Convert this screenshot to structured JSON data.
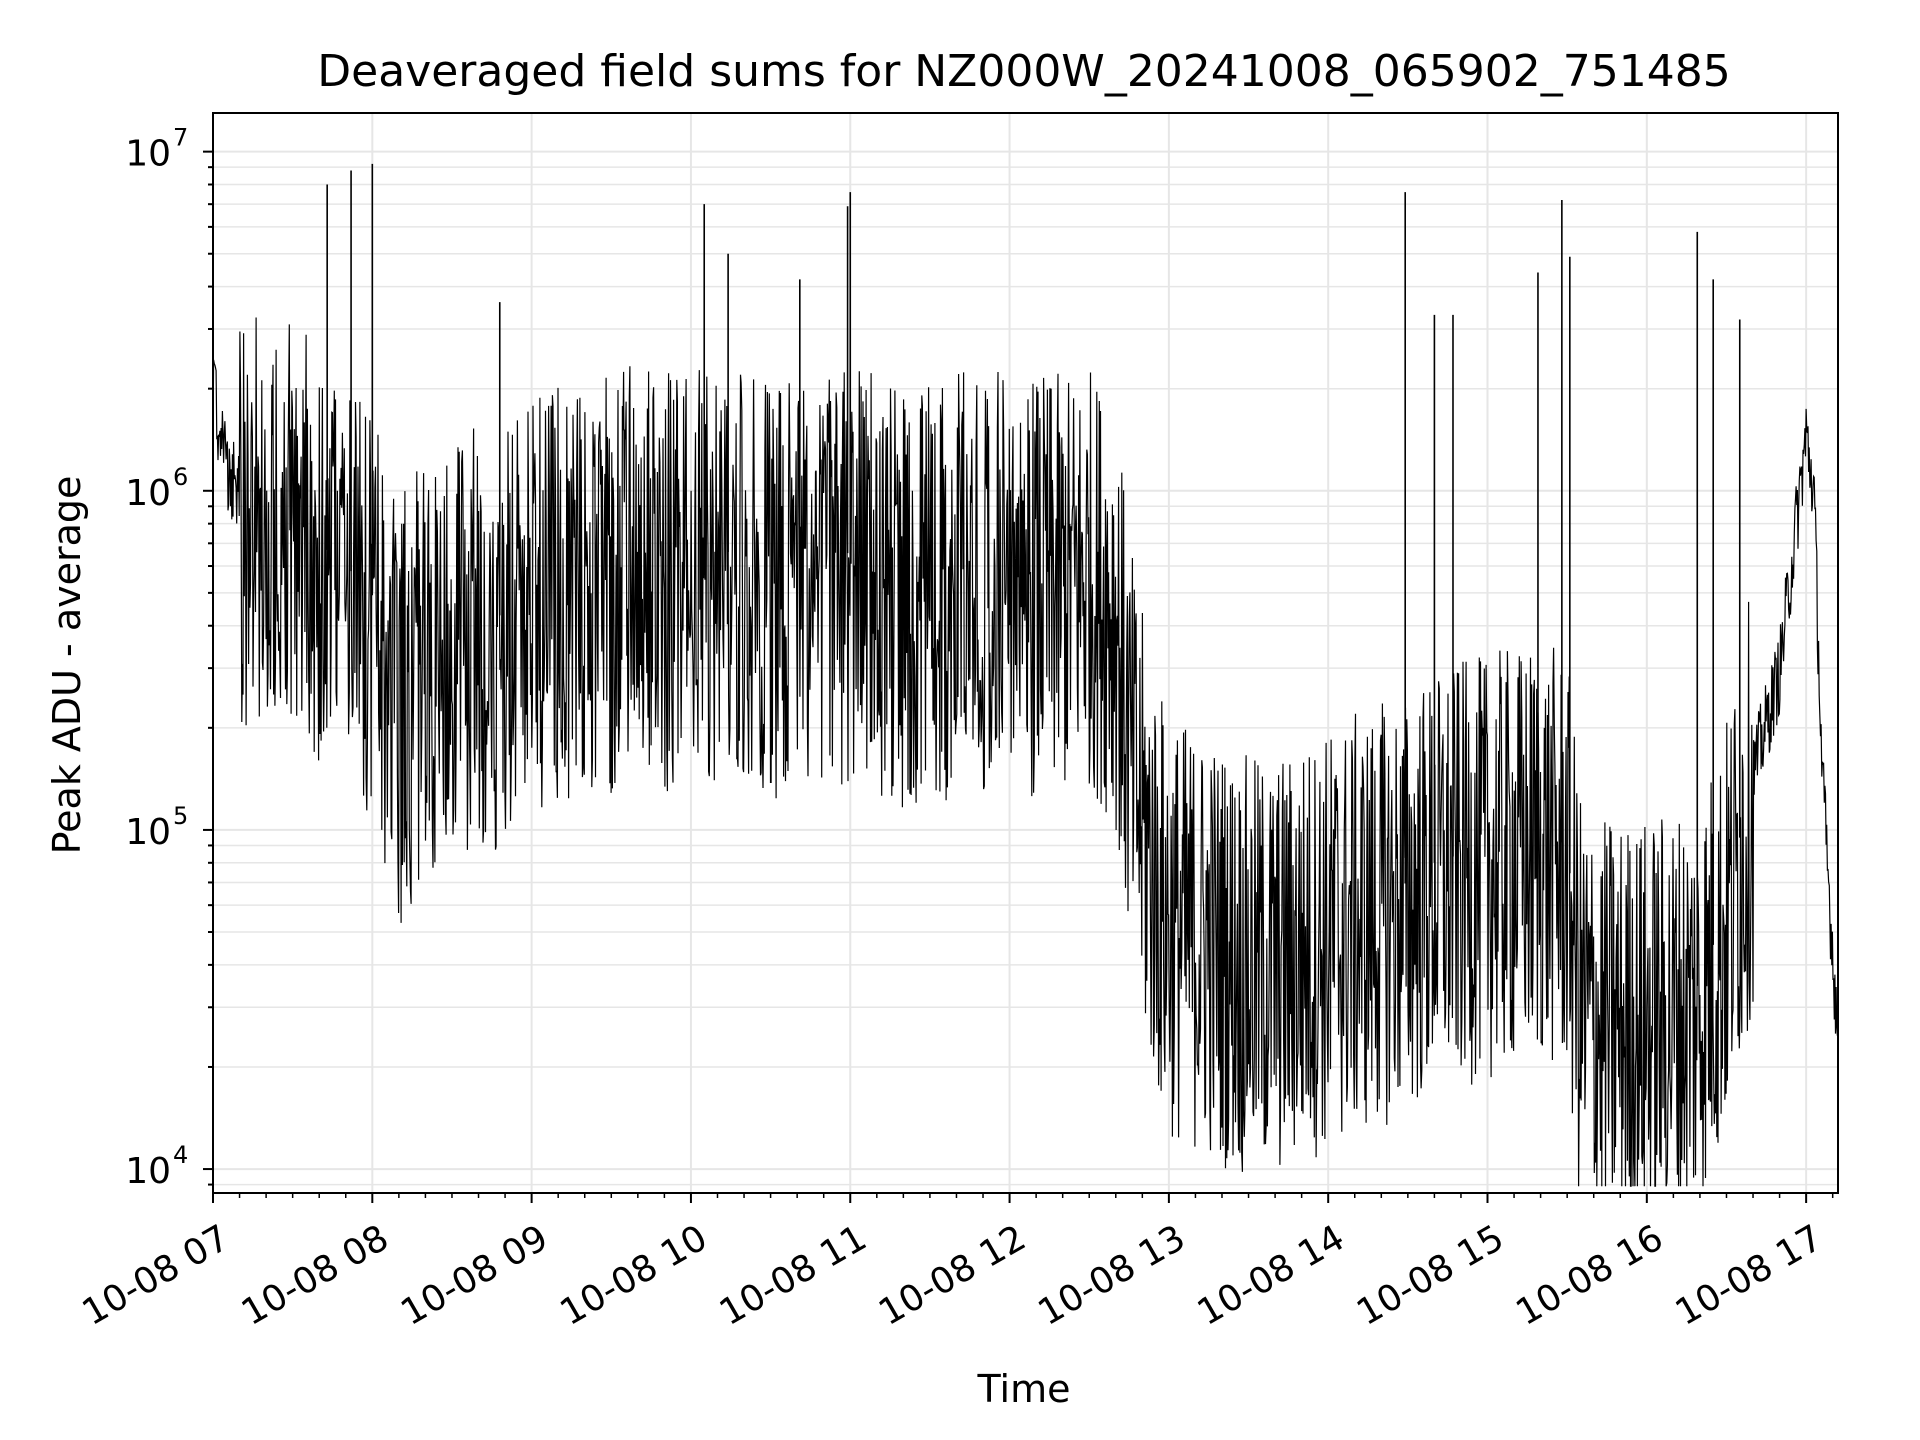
{
  "chart_data": {
    "type": "line",
    "title": "Deaveraged field sums for NZ000W_20241008_065902_751485",
    "xlabel": "Time",
    "ylabel": "Peak ADU - average",
    "yscale": "log",
    "ylim": [
      8500,
      13000000
    ],
    "xlim": [
      "2024-10-08 07:00",
      "2024-10-08 17:12"
    ],
    "grid": true,
    "line_color": "#000000",
    "x_ticks": [
      {
        "value": "2024-10-08 07:00",
        "label": "10-08 07"
      },
      {
        "value": "2024-10-08 08:00",
        "label": "10-08 08"
      },
      {
        "value": "2024-10-08 09:00",
        "label": "10-08 09"
      },
      {
        "value": "2024-10-08 10:00",
        "label": "10-08 10"
      },
      {
        "value": "2024-10-08 11:00",
        "label": "10-08 11"
      },
      {
        "value": "2024-10-08 12:00",
        "label": "10-08 12"
      },
      {
        "value": "2024-10-08 13:00",
        "label": "10-08 13"
      },
      {
        "value": "2024-10-08 14:00",
        "label": "10-08 14"
      },
      {
        "value": "2024-10-08 15:00",
        "label": "10-08 15"
      },
      {
        "value": "2024-10-08 16:00",
        "label": "10-08 16"
      },
      {
        "value": "2024-10-08 17:00",
        "label": "10-08 17"
      }
    ],
    "y_ticks": [
      {
        "value": 10000,
        "base": "10",
        "exp": "4"
      },
      {
        "value": 100000,
        "base": "10",
        "exp": "5"
      },
      {
        "value": 1000000,
        "base": "10",
        "exp": "6"
      },
      {
        "value": 10000000,
        "base": "10",
        "exp": "7"
      }
    ],
    "series": [
      {
        "x": [
          "2024-10-08 07:00",
          "2024-10-08 07:05",
          "2024-10-08 07:10",
          "2024-10-08 07:15",
          "2024-10-08 07:20",
          "2024-10-08 07:25",
          "2024-10-08 07:30",
          "2024-10-08 07:35",
          "2024-10-08 07:40",
          "2024-10-08 07:45",
          "2024-10-08 07:50",
          "2024-10-08 07:55",
          "2024-10-08 08:00",
          "2024-10-08 08:05",
          "2024-10-08 08:10",
          "2024-10-08 08:15",
          "2024-10-08 08:20",
          "2024-10-08 08:25",
          "2024-10-08 08:30",
          "2024-10-08 08:35",
          "2024-10-08 08:40",
          "2024-10-08 08:45",
          "2024-10-08 08:50",
          "2024-10-08 08:55",
          "2024-10-08 09:00",
          "2024-10-08 09:10",
          "2024-10-08 09:20",
          "2024-10-08 09:30",
          "2024-10-08 09:40",
          "2024-10-08 09:50",
          "2024-10-08 10:00",
          "2024-10-08 10:05",
          "2024-10-08 10:10",
          "2024-10-08 10:15",
          "2024-10-08 10:20",
          "2024-10-08 10:30",
          "2024-10-08 10:40",
          "2024-10-08 10:50",
          "2024-10-08 11:00",
          "2024-10-08 11:10",
          "2024-10-08 11:20",
          "2024-10-08 11:30",
          "2024-10-08 11:40",
          "2024-10-08 11:50",
          "2024-10-08 12:00",
          "2024-10-08 12:10",
          "2024-10-08 12:20",
          "2024-10-08 12:30",
          "2024-10-08 12:40",
          "2024-10-08 12:45",
          "2024-10-08 12:50",
          "2024-10-08 12:55",
          "2024-10-08 13:00",
          "2024-10-08 13:10",
          "2024-10-08 13:20",
          "2024-10-08 13:30",
          "2024-10-08 13:40",
          "2024-10-08 13:50",
          "2024-10-08 14:00",
          "2024-10-08 14:10",
          "2024-10-08 14:20",
          "2024-10-08 14:30",
          "2024-10-08 14:40",
          "2024-10-08 14:50",
          "2024-10-08 15:00",
          "2024-10-08 15:10",
          "2024-10-08 15:20",
          "2024-10-08 15:30",
          "2024-10-08 15:35",
          "2024-10-08 15:40",
          "2024-10-08 15:50",
          "2024-10-08 16:00",
          "2024-10-08 16:10",
          "2024-10-08 16:20",
          "2024-10-08 16:30",
          "2024-10-08 16:40",
          "2024-10-08 16:50",
          "2024-10-08 17:00",
          "2024-10-08 17:03",
          "2024-10-08 17:06",
          "2024-10-08 17:09",
          "2024-10-08 17:12"
        ],
        "y": [
          2000000,
          1200000,
          1000000,
          900000,
          1000000,
          950000,
          850000,
          800000,
          700000,
          650000,
          600000,
          550000,
          500000,
          300000,
          250000,
          300000,
          350000,
          300000,
          350000,
          400000,
          450000,
          400000,
          450000,
          500000,
          550000,
          600000,
          550000,
          600000,
          650000,
          600000,
          650000,
          600000,
          700000,
          650000,
          650000,
          600000,
          650000,
          700000,
          650000,
          600000,
          550000,
          600000,
          600000,
          650000,
          650000,
          600000,
          600000,
          650000,
          500000,
          200000,
          120000,
          80000,
          60000,
          55000,
          50000,
          45000,
          45000,
          50000,
          55000,
          60000,
          65000,
          70000,
          80000,
          85000,
          90000,
          95000,
          100000,
          90000,
          35000,
          30000,
          30000,
          30000,
          32000,
          35000,
          60000,
          150000,
          300000,
          1500000,
          1000000,
          150000,
          60000,
          25000
        ],
        "spikes": [
          {
            "x": "2024-10-08 07:43",
            "y": 8000000
          },
          {
            "x": "2024-10-08 07:52",
            "y": 8800000
          },
          {
            "x": "2024-10-08 08:00",
            "y": 9200000
          },
          {
            "x": "2024-10-08 08:48",
            "y": 3600000
          },
          {
            "x": "2024-10-08 10:05",
            "y": 7000000
          },
          {
            "x": "2024-10-08 10:14",
            "y": 5000000
          },
          {
            "x": "2024-10-08 10:41",
            "y": 4200000
          },
          {
            "x": "2024-10-08 10:59",
            "y": 6900000
          },
          {
            "x": "2024-10-08 11:00",
            "y": 7600000
          },
          {
            "x": "2024-10-08 14:29",
            "y": 7600000
          },
          {
            "x": "2024-10-08 14:40",
            "y": 3300000
          },
          {
            "x": "2024-10-08 14:47",
            "y": 3300000
          },
          {
            "x": "2024-10-08 15:19",
            "y": 4400000
          },
          {
            "x": "2024-10-08 15:28",
            "y": 7200000
          },
          {
            "x": "2024-10-08 15:31",
            "y": 4900000
          },
          {
            "x": "2024-10-08 16:19",
            "y": 5800000
          },
          {
            "x": "2024-10-08 16:25",
            "y": 4200000
          },
          {
            "x": "2024-10-08 16:35",
            "y": 3200000
          }
        ]
      }
    ]
  }
}
